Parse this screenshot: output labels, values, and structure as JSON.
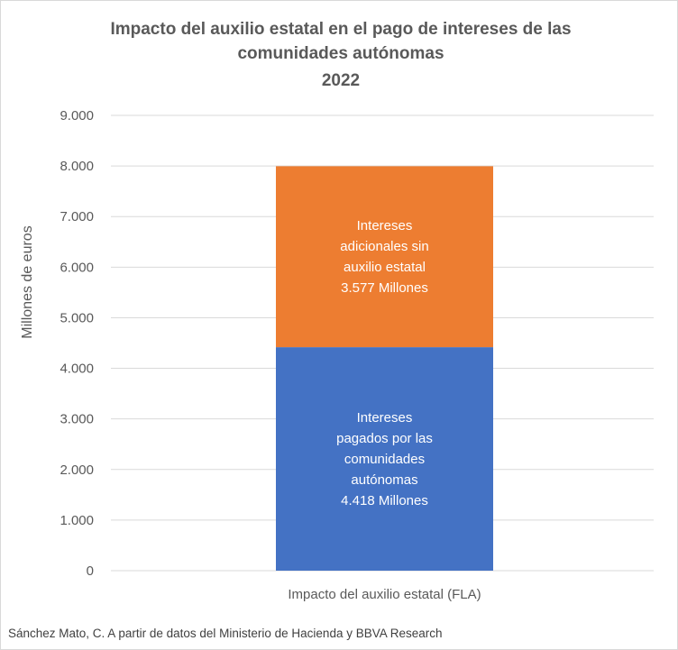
{
  "chart_data": {
    "type": "bar",
    "stacked": true,
    "title_lines": [
      "Impacto del auxilio estatal en el pago de intereses de las",
      "comunidades autónomas",
      "2022"
    ],
    "xlabel": "",
    "ylabel": "Millones de euros",
    "categories": [
      "Impacto del auxilio estatal (FLA)"
    ],
    "ylim": [
      0,
      9000
    ],
    "yticks": [
      "0",
      "1.000",
      "2.000",
      "3.000",
      "4.000",
      "5.000",
      "6.000",
      "7.000",
      "8.000",
      "9.000"
    ],
    "grid": true,
    "legend": "none",
    "series": [
      {
        "values": [
          4418
        ],
        "color": "#4472C4",
        "label_lines": [
          "Intereses",
          "pagados por las",
          "comunidades",
          "autónomas",
          "4.418 Millones"
        ]
      },
      {
        "values": [
          3577
        ],
        "color": "#ED7D31",
        "label_lines": [
          "Intereses",
          "adicionales sin",
          "auxilio estatal",
          "3.577  Millones"
        ]
      }
    ]
  },
  "source": "Sánchez Mato, C.  A partir de datos del Ministerio de Hacienda y BBVA Research"
}
